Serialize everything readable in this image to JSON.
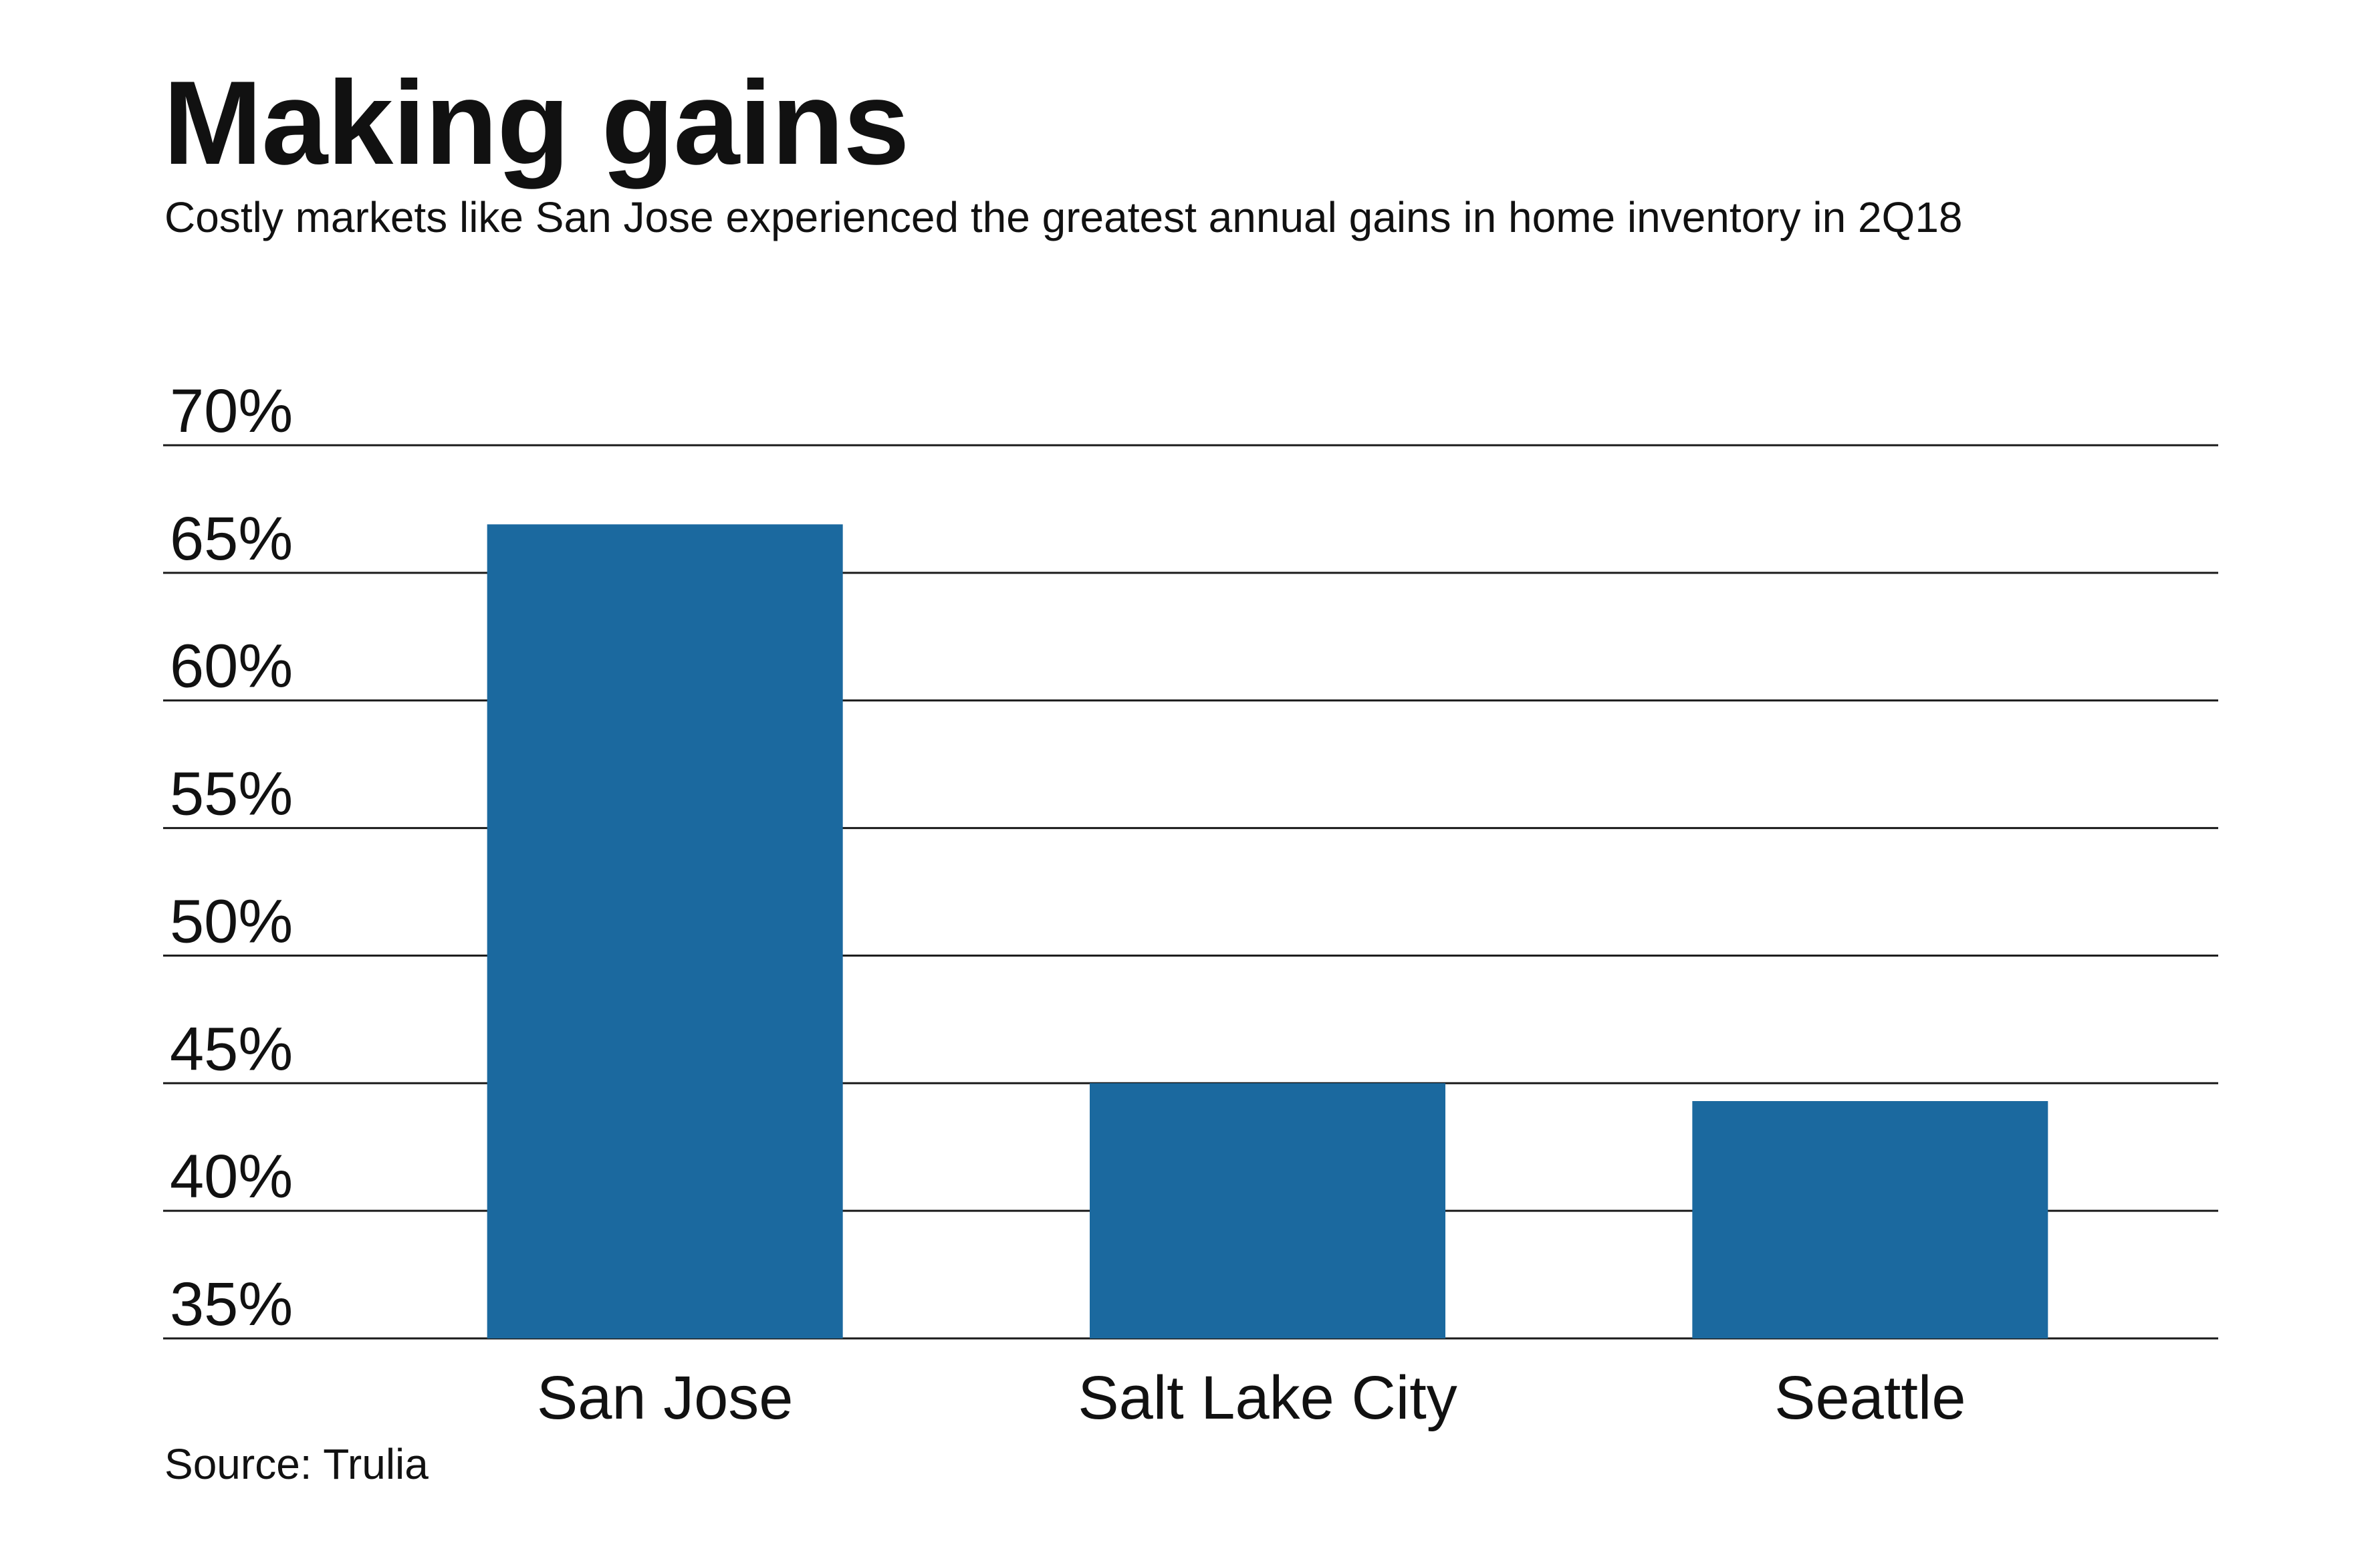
{
  "header": {
    "title": "Making gains",
    "subtitle": "Costly markets like San Jose experienced the greatest annual gains in home inventory in 2Q18"
  },
  "footer": {
    "source": "Source: Trulia"
  },
  "colors": {
    "bar": "#1b699f",
    "gridline": "#1a1a1a",
    "text": "#111111",
    "background": "#ffffff"
  },
  "chart_data": {
    "type": "bar",
    "title": "Making gains",
    "subtitle": "Costly markets like San Jose experienced the greatest annual gains in home inventory in 2Q18",
    "categories": [
      "San Jose",
      "Salt Lake City",
      "Seattle"
    ],
    "values": [
      66.9,
      45.0,
      44.3
    ],
    "unit": "%",
    "ylim": [
      35,
      70
    ],
    "yticks": [
      35,
      40,
      45,
      50,
      55,
      60,
      65,
      70
    ],
    "ytick_labels": [
      "35%",
      "40%",
      "45%",
      "50%",
      "55%",
      "60%",
      "65%",
      "70%"
    ],
    "grid": true,
    "legend": "none",
    "xlabel": "",
    "ylabel": "",
    "source": "Source: Trulia"
  }
}
